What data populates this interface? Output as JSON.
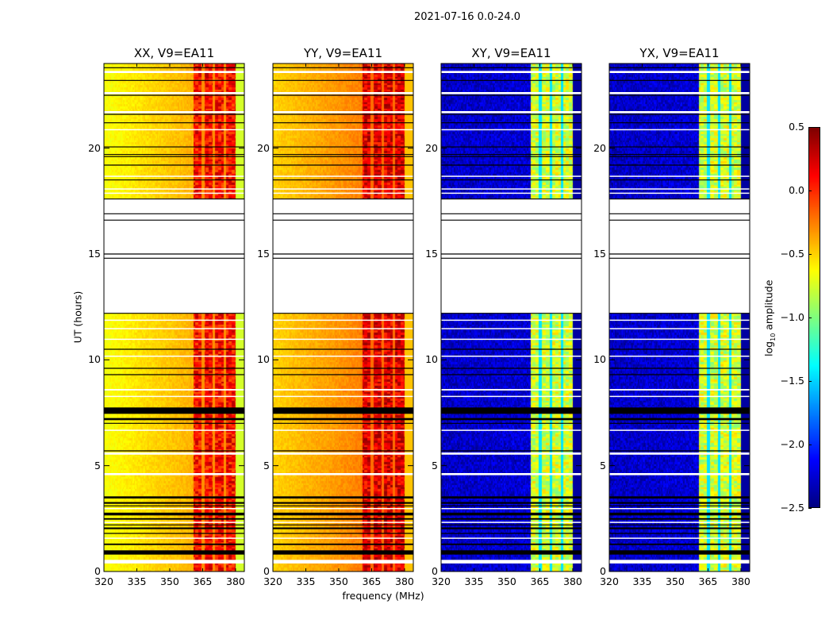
{
  "suptitle": "2021-07-16 0.0-24.0",
  "chart_data": {
    "type": "heatmap",
    "xlabel": "frequency (MHz)",
    "ylabel": "UT (hours)",
    "xlim": [
      320,
      384
    ],
    "ylim": [
      0,
      24
    ],
    "xticks": [
      "320",
      "335",
      "350",
      "365",
      "380"
    ],
    "yticks": [
      "0",
      "5",
      "10",
      "15",
      "20"
    ],
    "colormap": "jet",
    "colorbar": {
      "label_main": "log",
      "label_sub": "10",
      "label_rest": " amplitude",
      "range": [
        -2.5,
        0.5
      ],
      "ticks": [
        "0.5",
        "0.0",
        "−0.5",
        "−1.0",
        "−1.5",
        "−2.0",
        "−2.5"
      ]
    },
    "panels": [
      {
        "title": "XX, V9=EA11",
        "kind": "parallel",
        "base_low": -0.65,
        "base_high": -0.4,
        "band_level": 0.1,
        "band_gap_level": -0.3,
        "outside_level": -0.75
      },
      {
        "title": "YY, V9=EA11",
        "kind": "parallel",
        "base_low": -0.5,
        "base_high": -0.25,
        "band_level": 0.2,
        "band_gap_level": -0.2,
        "outside_level": -0.45
      },
      {
        "title": "XY, V9=EA11",
        "kind": "cross",
        "base_low": -2.3,
        "base_high": -2.25,
        "band_level": -0.75,
        "band_gap_level": -1.45,
        "outside_level": -2.4
      },
      {
        "title": "YX, V9=EA11",
        "kind": "cross",
        "base_low": -2.3,
        "base_high": -2.25,
        "band_level": -0.75,
        "band_gap_level": -1.45,
        "outside_level": -2.4
      }
    ],
    "band_mhz": [
      360.5,
      380
    ],
    "band_gaps_mhz": [
      365,
      370,
      375
    ],
    "no_data_hours": [
      [
        12.2,
        17.6
      ],
      [
        0.38,
        0.55
      ],
      [
        5.52,
        5.62
      ],
      [
        4.55,
        4.65
      ],
      [
        23.55,
        23.65
      ],
      [
        22.55,
        22.65
      ],
      [
        21.65,
        21.75
      ],
      [
        20.85,
        20.9
      ],
      [
        18.65,
        18.7
      ],
      [
        18.05,
        18.1
      ],
      [
        17.85,
        17.9
      ],
      [
        11.85,
        11.9
      ],
      [
        11.45,
        11.5
      ],
      [
        10.95,
        11.0
      ],
      [
        10.15,
        10.2
      ],
      [
        8.55,
        8.62
      ],
      [
        8.25,
        8.3
      ],
      [
        6.65,
        6.7
      ],
      [
        2.95,
        3.0
      ],
      [
        2.3,
        2.35
      ],
      [
        1.55,
        1.6
      ]
    ],
    "flag_line_hours": [
      23.8,
      23.2,
      22.5,
      21.6,
      21.2,
      20.06,
      19.7,
      19.6,
      19.2,
      18.5,
      17.6,
      16.9,
      16.6,
      15.0,
      14.8,
      12.2,
      10.5,
      9.6,
      9.3,
      7.0,
      5.7,
      3.1,
      2.2,
      1.8
    ],
    "flag_band_hours": [
      [
        7.45,
        7.75
      ],
      [
        7.15,
        7.25
      ],
      [
        3.45,
        3.55
      ],
      [
        3.2,
        3.28
      ],
      [
        2.65,
        2.78
      ],
      [
        2.45,
        2.52
      ],
      [
        2.0,
        2.08
      ],
      [
        1.25,
        1.32
      ],
      [
        0.8,
        1.0
      ]
    ]
  }
}
